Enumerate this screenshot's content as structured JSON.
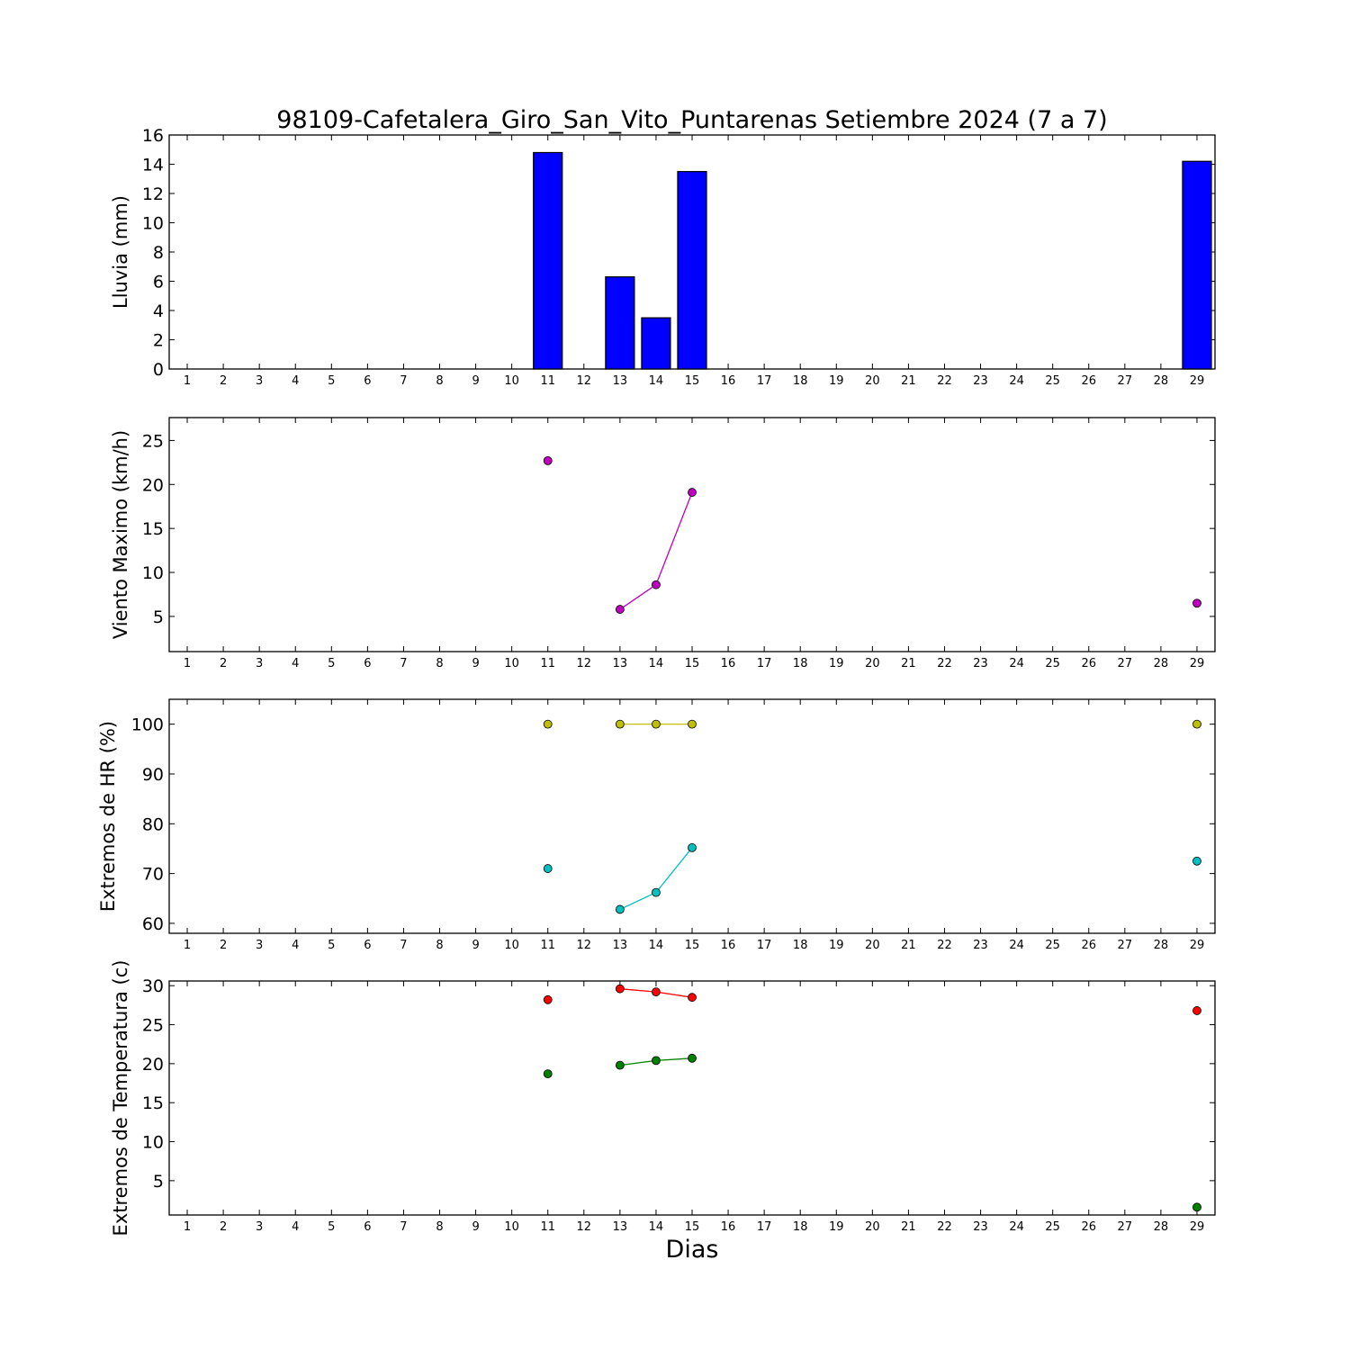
{
  "chart_data": {
    "title": "98109-Cafetalera_Giro_San_Vito_Puntarenas Setiembre 2024  (7 a 7)",
    "xlabel": "Dias",
    "days": [
      1,
      2,
      3,
      4,
      5,
      6,
      7,
      8,
      9,
      10,
      11,
      12,
      13,
      14,
      15,
      16,
      17,
      18,
      19,
      20,
      21,
      22,
      23,
      24,
      25,
      26,
      27,
      28,
      29
    ],
    "panels": [
      {
        "type": "bar",
        "ylabel": "Lluvia (mm)",
        "ylim": [
          0,
          16
        ],
        "yticks": [
          0,
          2,
          4,
          6,
          8,
          10,
          12,
          14,
          16
        ],
        "series": [
          {
            "color": "#0000ff",
            "points": [
              [
                11,
                14.8
              ],
              [
                13,
                6.3
              ],
              [
                14,
                3.5
              ],
              [
                15,
                13.5
              ],
              [
                29,
                14.2
              ]
            ]
          }
        ]
      },
      {
        "type": "line",
        "ylabel": "Viento Maximo (km/h)",
        "ylim": [
          1,
          27.6
        ],
        "yticks": [
          5,
          10,
          15,
          20,
          25
        ],
        "series": [
          {
            "color": "#bf00bf",
            "points": [
              [
                11,
                22.7
              ],
              [
                13,
                5.8
              ],
              [
                14,
                8.6
              ],
              [
                15,
                19.1
              ],
              [
                29,
                6.5
              ]
            ]
          }
        ]
      },
      {
        "type": "line",
        "ylabel": "Extremos de HR (%)",
        "ylim": [
          58,
          105
        ],
        "yticks": [
          60,
          70,
          80,
          90,
          100
        ],
        "series": [
          {
            "color": "#bfbf00",
            "points": [
              [
                11,
                100
              ],
              [
                13,
                100
              ],
              [
                14,
                100
              ],
              [
                15,
                100
              ],
              [
                29,
                100
              ]
            ]
          },
          {
            "color": "#00bfbf",
            "points": [
              [
                11,
                71
              ],
              [
                13,
                62.8
              ],
              [
                14,
                66.2
              ],
              [
                15,
                75.2
              ],
              [
                29,
                72.5
              ]
            ]
          }
        ]
      },
      {
        "type": "line",
        "ylabel": "Extremos de Temperatura (c)",
        "ylim": [
          0.6,
          30.6
        ],
        "yticks": [
          5,
          10,
          15,
          20,
          25,
          30
        ],
        "series": [
          {
            "color": "#ff0000",
            "points": [
              [
                11,
                28.2
              ],
              [
                13,
                29.6
              ],
              [
                14,
                29.2
              ],
              [
                15,
                28.5
              ],
              [
                29,
                26.8
              ]
            ]
          },
          {
            "color": "#008000",
            "points": [
              [
                11,
                18.7
              ],
              [
                13,
                19.8
              ],
              [
                14,
                20.4
              ],
              [
                15,
                20.7
              ],
              [
                29,
                1.6
              ]
            ]
          }
        ]
      }
    ]
  }
}
